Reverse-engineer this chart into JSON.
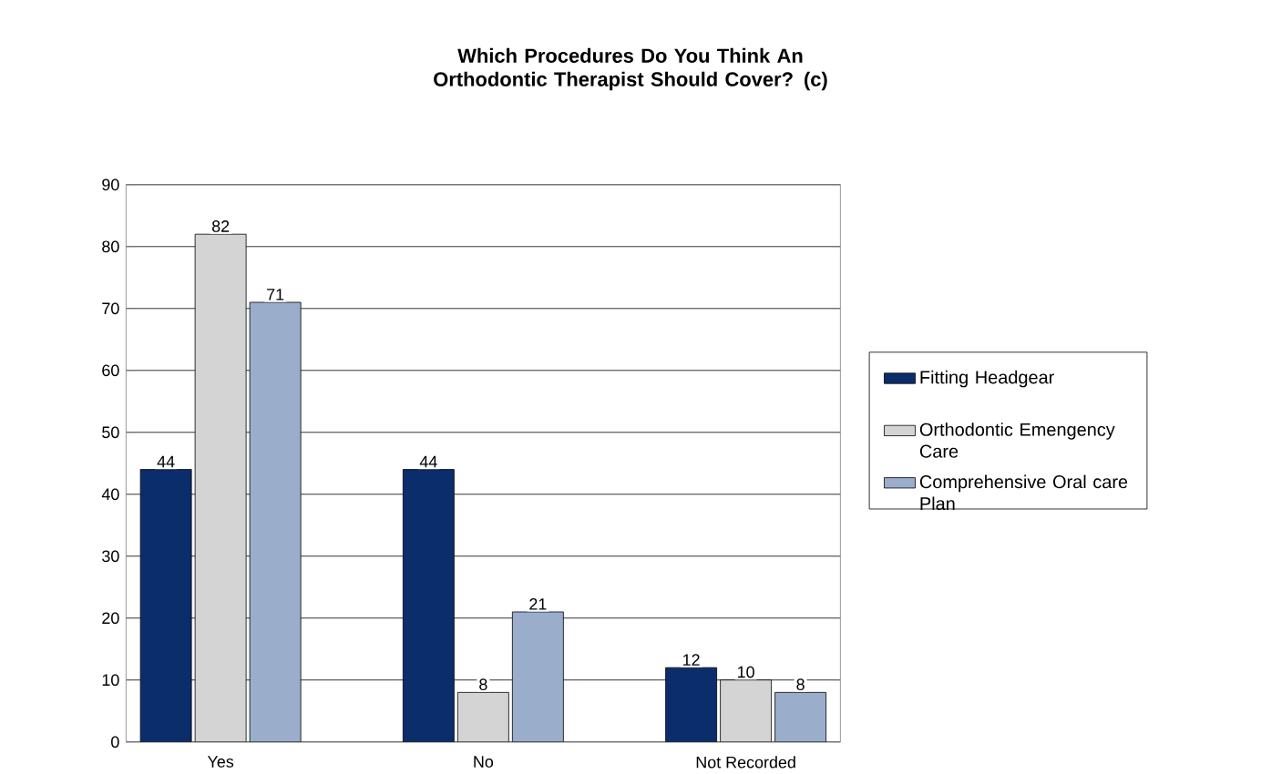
{
  "chart_data": {
    "type": "bar",
    "title": "Which Procedures Do You Think An Orthodontic Therapist Should Cover? (c)",
    "categories": [
      "Yes",
      "No",
      "Not Recorded"
    ],
    "series": [
      {
        "name": "Fitting Headgear",
        "color": "#0c2d6b",
        "values": [
          44,
          44,
          12
        ]
      },
      {
        "name": "Orthodontic Emengency Care",
        "color": "#d4d4d4",
        "values": [
          82,
          8,
          10
        ]
      },
      {
        "name": "Comprehensive Oral care Plan",
        "color": "#9aaecb",
        "values": [
          71,
          21,
          8
        ]
      }
    ],
    "ylim": [
      0,
      90
    ],
    "yticks": [
      0,
      10,
      20,
      30,
      40,
      50,
      60,
      70,
      80,
      90
    ],
    "grid": "y",
    "legend": "right",
    "data_labels": true
  }
}
